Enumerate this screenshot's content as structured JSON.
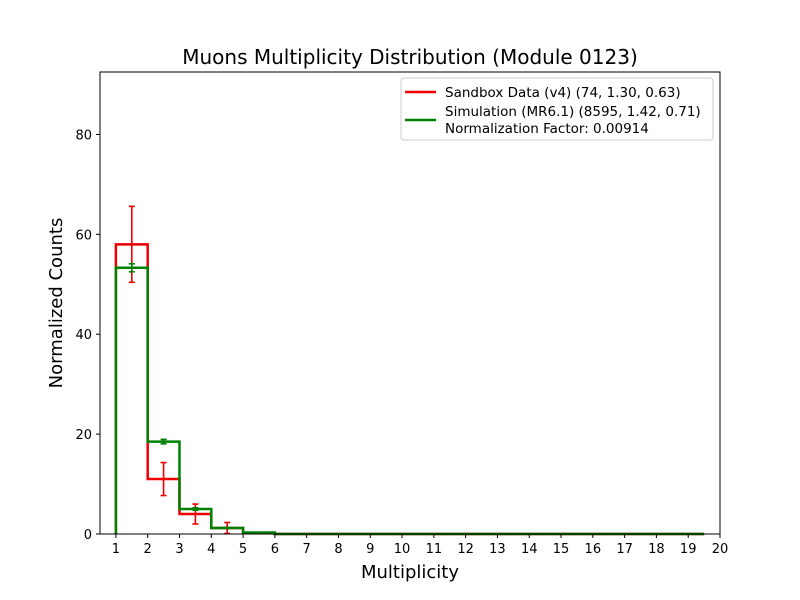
{
  "chart_data": {
    "type": "histogram-step",
    "title": "Muons Multiplicity Distribution (Module 0123)",
    "xlabel": "Multiplicity",
    "ylabel": "Normalized Counts",
    "xlim": [
      0.5,
      20
    ],
    "ylim": [
      0,
      92.5
    ],
    "xticks": [
      1,
      2,
      3,
      4,
      5,
      6,
      7,
      8,
      9,
      10,
      11,
      12,
      13,
      14,
      15,
      16,
      17,
      18,
      19,
      20
    ],
    "yticks": [
      0,
      20,
      40,
      60,
      80
    ],
    "bin_edges": [
      1,
      2,
      3,
      4,
      5,
      6,
      7,
      8,
      9,
      10,
      11,
      12,
      13,
      14,
      15,
      16,
      17,
      18,
      19,
      19.5
    ],
    "series": [
      {
        "name": "Sandbox Data (v4) (74, 1.30, 0.63)",
        "color": "#ee0000",
        "values": [
          58.0,
          11.0,
          4.0,
          1.2,
          0.2,
          0,
          0,
          0,
          0,
          0,
          0,
          0,
          0,
          0,
          0,
          0,
          0,
          0,
          0
        ],
        "errors": [
          {
            "x": 1.5,
            "y": 58.0,
            "err": 7.6
          },
          {
            "x": 2.5,
            "y": 11.0,
            "err": 3.3
          },
          {
            "x": 3.5,
            "y": 4.0,
            "err": 2.0
          },
          {
            "x": 4.5,
            "y": 1.2,
            "err": 1.1
          }
        ]
      },
      {
        "name": "Simulation (MR6.1) (8595, 1.42, 0.71)",
        "color": "#008000",
        "values": [
          53.3,
          18.5,
          5.0,
          1.2,
          0.3,
          0,
          0,
          0,
          0,
          0,
          0,
          0,
          0,
          0,
          0,
          0,
          0,
          0,
          0
        ],
        "errors": [
          {
            "x": 1.5,
            "y": 53.3,
            "err": 0.8
          },
          {
            "x": 2.5,
            "y": 18.5,
            "err": 0.45
          },
          {
            "x": 3.5,
            "y": 5.0,
            "err": 0.25
          },
          {
            "x": 4.5,
            "y": 1.2,
            "err": 0.12
          }
        ]
      }
    ],
    "legend": {
      "position": "top-right",
      "extra_text": "Normalization Factor: 0.00914"
    }
  }
}
